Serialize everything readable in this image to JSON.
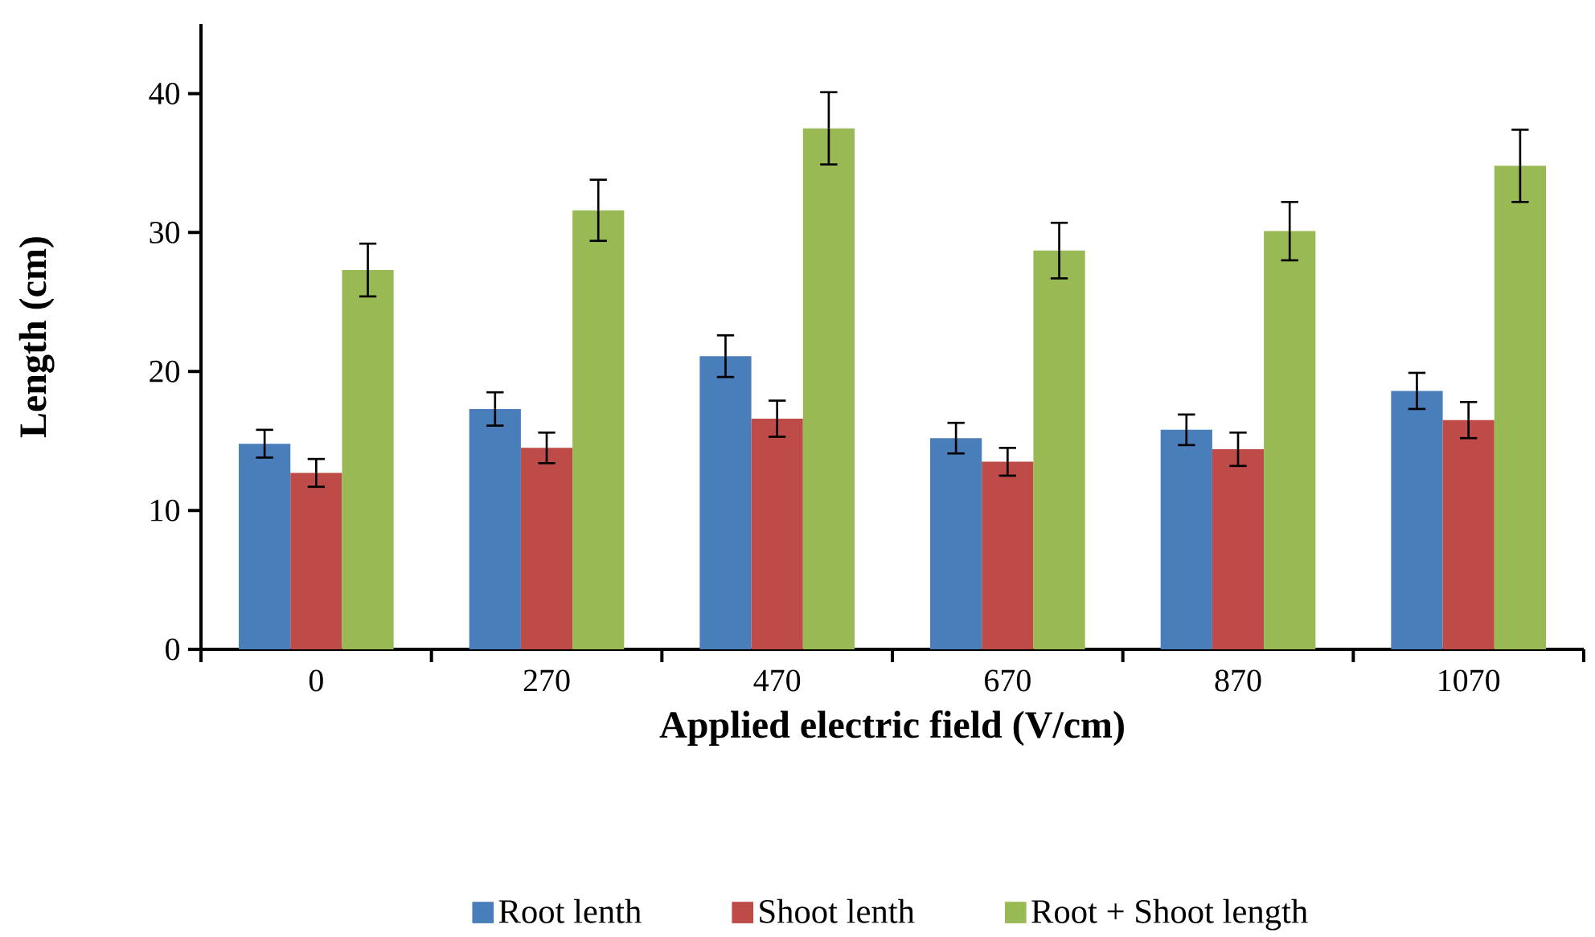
{
  "chart_data": {
    "type": "bar",
    "xlabel": "Applied electric field  (V/cm)",
    "ylabel": "Length (cm)",
    "categories": [
      "0",
      "270",
      "470",
      "670",
      "870",
      "1070"
    ],
    "series": [
      {
        "name": "Root lenth",
        "color": "#4a7ebb",
        "values": [
          14.8,
          17.3,
          21.1,
          15.2,
          15.8,
          18.6
        ],
        "errors": [
          1.0,
          1.2,
          1.5,
          1.1,
          1.1,
          1.3
        ]
      },
      {
        "name": "Shoot lenth",
        "color": "#be4b48",
        "values": [
          12.7,
          14.5,
          16.6,
          13.5,
          14.4,
          16.5
        ],
        "errors": [
          1.0,
          1.1,
          1.3,
          1.0,
          1.2,
          1.3
        ]
      },
      {
        "name": "Root + Shoot length",
        "color": "#98b954",
        "values": [
          27.3,
          31.6,
          37.5,
          28.7,
          30.1,
          34.8
        ],
        "errors": [
          1.9,
          2.2,
          2.6,
          2.0,
          2.1,
          2.6
        ]
      }
    ],
    "ylim": [
      0,
      45
    ],
    "yticks": [
      0,
      10,
      20,
      30,
      40
    ],
    "grid": false,
    "legend": "bottom"
  }
}
